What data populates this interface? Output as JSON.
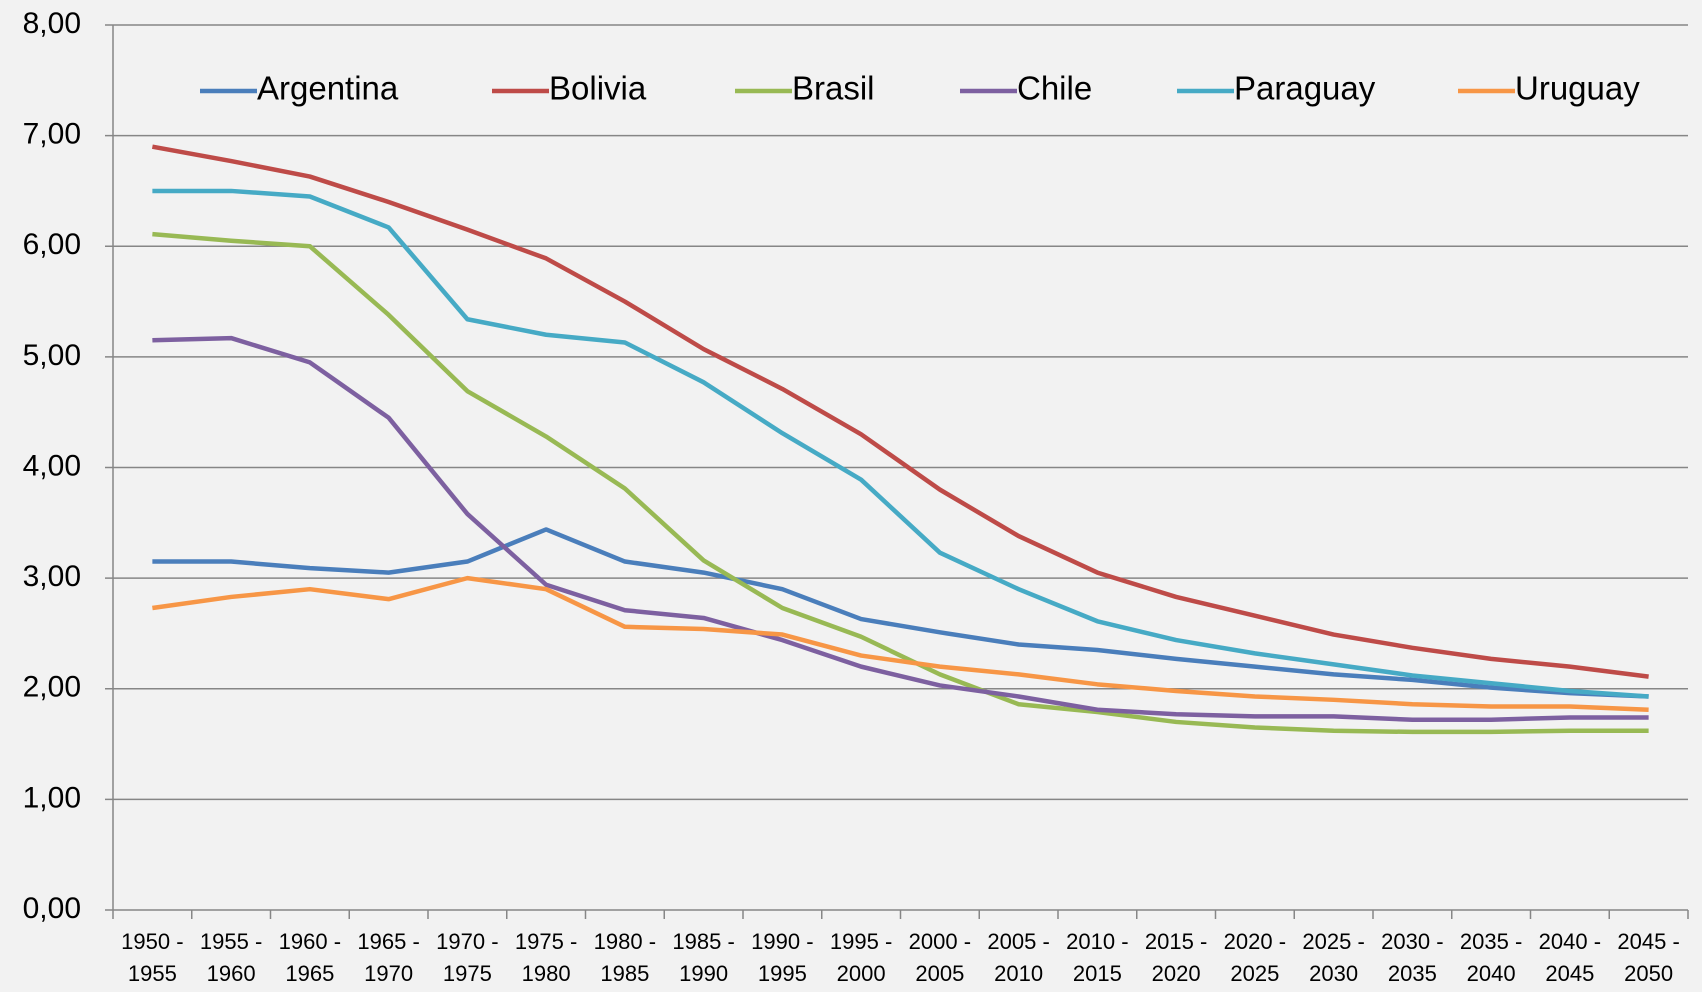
{
  "chart_data": {
    "type": "line",
    "categories": [
      "1950 - 1955",
      "1955 - 1960",
      "1960 - 1965",
      "1965 - 1970",
      "1970 - 1975",
      "1975 - 1980",
      "1980 - 1985",
      "1985 - 1990",
      "1990 - 1995",
      "1995 - 2000",
      "2000 - 2005",
      "2005 - 2010",
      "2010 - 2015",
      "2015 - 2020",
      "2020 - 2025",
      "2025 - 2030",
      "2030 - 2035",
      "2035 - 2040",
      "2040 - 2045",
      "2045 - 2050"
    ],
    "series": [
      {
        "name": "Argentina",
        "color": "#4a7ebb",
        "values": [
          3.15,
          3.15,
          3.09,
          3.05,
          3.15,
          3.44,
          3.15,
          3.05,
          2.9,
          2.63,
          2.51,
          2.4,
          2.35,
          2.27,
          2.2,
          2.13,
          2.08,
          2.01,
          1.96,
          1.93
        ]
      },
      {
        "name": "Bolivia",
        "color": "#be4b48",
        "values": [
          6.9,
          6.77,
          6.63,
          6.4,
          6.15,
          5.89,
          5.5,
          5.07,
          4.71,
          4.3,
          3.8,
          3.38,
          3.05,
          2.83,
          2.66,
          2.49,
          2.37,
          2.27,
          2.2,
          2.11
        ]
      },
      {
        "name": "Brasil",
        "color": "#98b954",
        "values": [
          6.11,
          6.05,
          6.0,
          5.38,
          4.69,
          4.28,
          3.81,
          3.16,
          2.73,
          2.47,
          2.13,
          1.86,
          1.79,
          1.7,
          1.65,
          1.62,
          1.61,
          1.61,
          1.62,
          1.62
        ]
      },
      {
        "name": "Chile",
        "color": "#7d60a0",
        "values": [
          5.15,
          5.17,
          4.95,
          4.45,
          3.58,
          2.94,
          2.71,
          2.64,
          2.44,
          2.2,
          2.03,
          1.93,
          1.81,
          1.77,
          1.75,
          1.75,
          1.72,
          1.72,
          1.74,
          1.74
        ]
      },
      {
        "name": "Paraguay",
        "color": "#46aac5",
        "values": [
          6.5,
          6.5,
          6.45,
          6.17,
          5.34,
          5.2,
          5.13,
          4.77,
          4.31,
          3.89,
          3.23,
          2.9,
          2.61,
          2.44,
          2.32,
          2.22,
          2.12,
          2.05,
          1.98,
          1.93
        ]
      },
      {
        "name": "Uruguay",
        "color": "#f79646",
        "values": [
          2.73,
          2.83,
          2.9,
          2.81,
          3.0,
          2.9,
          2.56,
          2.54,
          2.49,
          2.3,
          2.2,
          2.13,
          2.04,
          1.98,
          1.93,
          1.9,
          1.86,
          1.84,
          1.84,
          1.81
        ]
      }
    ],
    "ylim": [
      0,
      8
    ],
    "yticks": [
      {
        "value": 0,
        "label": "0,00"
      },
      {
        "value": 1,
        "label": "1,00"
      },
      {
        "value": 2,
        "label": "2,00"
      },
      {
        "value": 3,
        "label": "3,00"
      },
      {
        "value": 4,
        "label": "4,00"
      },
      {
        "value": 5,
        "label": "5,00"
      },
      {
        "value": 6,
        "label": "6,00"
      },
      {
        "value": 7,
        "label": "7,00"
      },
      {
        "value": 8,
        "label": "8,00"
      }
    ],
    "grid": true,
    "legend": "top"
  }
}
